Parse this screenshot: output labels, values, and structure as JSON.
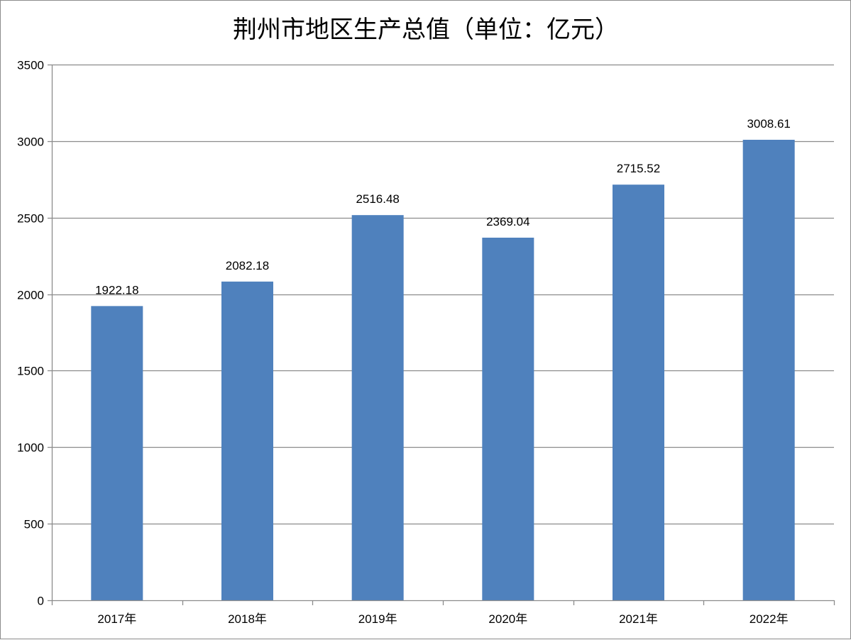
{
  "chart_data": {
    "type": "bar",
    "title": "荆州市地区生产总值（单位：亿元）",
    "xlabel": "",
    "ylabel": "",
    "categories": [
      "2017年",
      "2018年",
      "2019年",
      "2020年",
      "2021年",
      "2022年"
    ],
    "values": [
      1922.18,
      2082.18,
      2516.48,
      2369.04,
      2715.52,
      3008.61
    ],
    "value_labels": [
      "1922.18",
      "2082.18",
      "2516.48",
      "2369.04",
      "2715.52",
      "3008.61"
    ],
    "ylim": [
      0,
      3500
    ],
    "yticks": [
      0,
      500,
      1000,
      1500,
      2000,
      2500,
      3000,
      3500
    ],
    "ytick_labels": [
      "0",
      "500",
      "1000",
      "1500",
      "2000",
      "2500",
      "3000",
      "3500"
    ],
    "grid": true,
    "legend": "none",
    "colors": {
      "bar": "#4f81bd",
      "grid": "#8c8c8c",
      "axis": "#8c8c8c",
      "text": "#000000"
    }
  }
}
